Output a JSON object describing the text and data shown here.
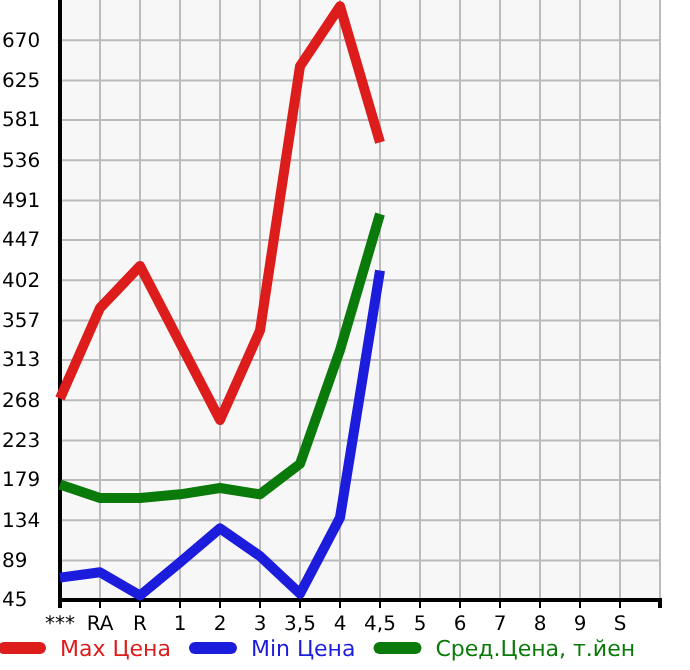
{
  "chart_data": {
    "type": "line",
    "categories": [
      "***",
      "RA",
      "R",
      "1",
      "2",
      "3",
      "3,5",
      "4",
      "4,5",
      "5",
      "6",
      "7",
      "8",
      "9",
      "S"
    ],
    "series": [
      {
        "name": "Max Цена",
        "color": "#dd1c1c",
        "values": [
          270,
          371,
          418,
          332,
          246,
          346,
          641,
          708,
          556,
          null,
          null,
          null,
          null,
          null,
          null
        ]
      },
      {
        "name": "Min Цена",
        "color": "#1c1cdd",
        "values": [
          70,
          76,
          50,
          87,
          125,
          94,
          52,
          137,
          413,
          null,
          null,
          null,
          null,
          null,
          null
        ]
      },
      {
        "name": "Сред.Цена, т.йен",
        "color": "#0a7a0a",
        "values": [
          174,
          159,
          159,
          163,
          170,
          163,
          197,
          324,
          476,
          null,
          null,
          null,
          null,
          null,
          null
        ]
      }
    ],
    "ylim": [
      45,
      715
    ],
    "yticks": [
      45,
      89,
      134,
      179,
      223,
      268,
      313,
      357,
      402,
      447,
      491,
      536,
      581,
      625,
      670
    ],
    "grid": true,
    "legend": "bottom",
    "marker": "none",
    "line_style": "solid"
  }
}
